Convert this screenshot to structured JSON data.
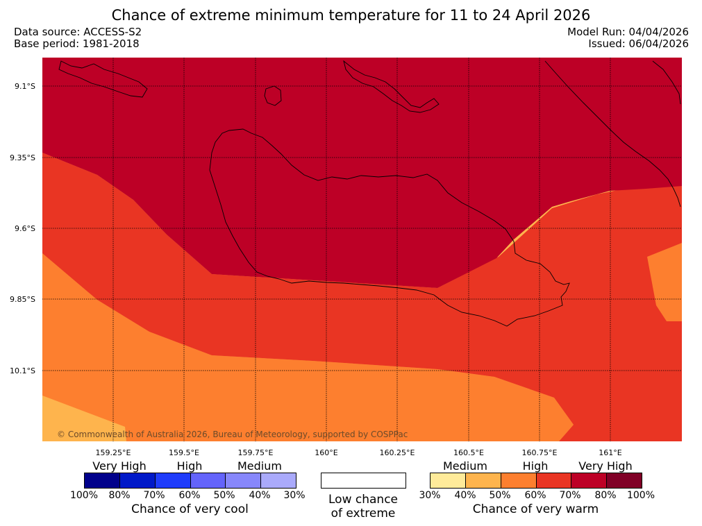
{
  "title": "Chance of extreme minimum temperature for 11 to 24 April 2026",
  "data_source": "Data source: ACCESS-S2",
  "base_period": "Base period: 1981-2018",
  "model_run": "Model Run: 04/04/2026",
  "issued": "Issued: 06/04/2026",
  "map": {
    "lat_labels": [
      "9.1°S",
      "9.35°S",
      "9.6°S",
      "9.85°S",
      "10.1°S"
    ],
    "lon_labels": [
      "159.25°E",
      "159.5°E",
      "159.75°E",
      "160°E",
      "160.25°E",
      "160.5°E",
      "160.75°E",
      "161°E"
    ],
    "copyright": "© Commonwealth of Australia 2026, Bureau of Meteorology, supported by COSPPac",
    "zone_colors": {
      "very_high_80": "#bd0026",
      "high_70": "#e93523",
      "high_60": "#fd7f2f",
      "medium_40": "#feb44d"
    }
  },
  "legend": {
    "cool": {
      "categories": [
        "Very High",
        "High",
        "Medium"
      ],
      "colors": [
        "#00008b",
        "#0019c8",
        "#1f3cfb",
        "#6464fb",
        "#8787fb",
        "#aaaafb"
      ],
      "percents": [
        "100%",
        "80%",
        "70%",
        "60%",
        "50%",
        "40%",
        "30%"
      ],
      "caption": "Chance of very cool"
    },
    "neutral": {
      "line1": "Low chance",
      "line2": "of extreme",
      "color": "#ffffff"
    },
    "warm": {
      "categories": [
        "Medium",
        "High",
        "Very High"
      ],
      "colors": [
        "#ffeb9a",
        "#feb44d",
        "#fd7f2f",
        "#e93523",
        "#bd0026",
        "#800026"
      ],
      "percents": [
        "30%",
        "40%",
        "50%",
        "60%",
        "70%",
        "80%",
        "100%"
      ],
      "caption": "Chance of very warm"
    }
  }
}
